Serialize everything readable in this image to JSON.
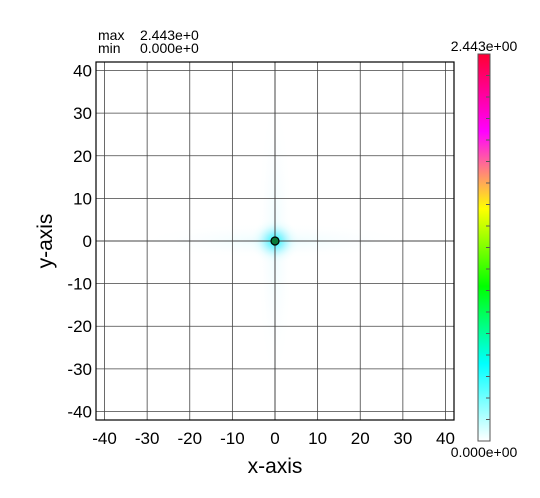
{
  "stats": {
    "max_label": "max",
    "max_value": "2.443e+0",
    "min_label": "min",
    "min_value": "0.000e+0"
  },
  "colorbar": {
    "max_label": "2.443e+00",
    "min_label": "0.000e+00",
    "stops": [
      "#ffffff",
      "#00ffff",
      "#00ff00",
      "#ffff00",
      "#ff00ff",
      "#ff0033"
    ],
    "range": [
      0,
      2.443
    ]
  },
  "chart_data": {
    "type": "heatmap",
    "title": "",
    "xlabel": "x-axis",
    "ylabel": "y-axis",
    "xlim": [
      -42,
      42
    ],
    "ylim": [
      -42,
      42
    ],
    "xticks": [
      -40,
      -30,
      -20,
      -10,
      0,
      10,
      20,
      30,
      40
    ],
    "yticks": [
      -40,
      -30,
      -20,
      -10,
      0,
      10,
      20,
      30,
      40
    ],
    "grid": true,
    "peak": {
      "x": 0,
      "y": 0,
      "value": 2.443
    },
    "min_value": 0.0
  }
}
